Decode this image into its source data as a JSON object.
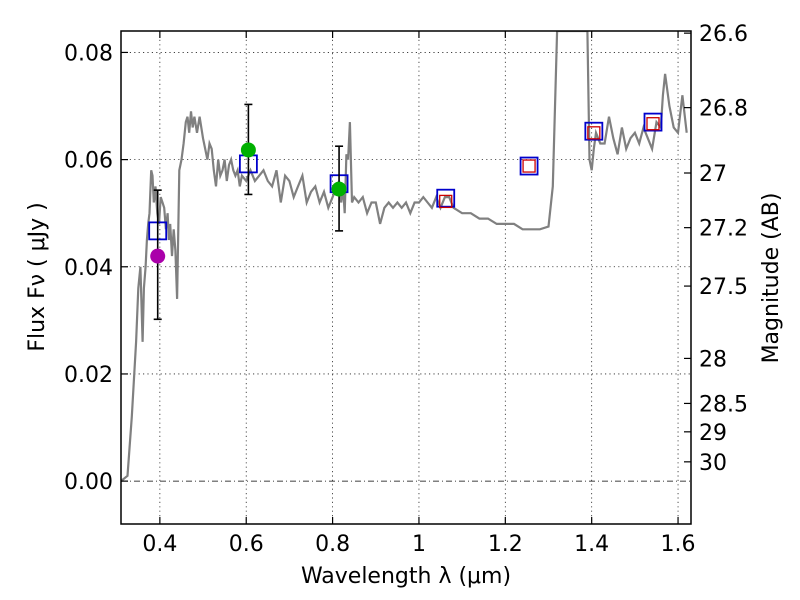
{
  "chart_data": {
    "type": "line",
    "title": "",
    "xlabel": "Wavelength  λ (μm)",
    "ylabel": "Flux  Fν  ( μJy )",
    "y2label": "Magnitude (AB)",
    "xlim": [
      0.31,
      1.63
    ],
    "ylim": [
      -0.008,
      0.084
    ],
    "grid": true,
    "x_ticks": [
      0.4,
      0.6,
      0.8,
      1.0,
      1.2,
      1.4,
      1.6
    ],
    "x_tick_labels": [
      "0.4",
      "0.6",
      "0.8",
      "1",
      "1.2",
      "1.4",
      "1.6"
    ],
    "y_ticks": [
      0.0,
      0.02,
      0.04,
      0.06,
      0.08
    ],
    "y_tick_labels": [
      "0.00",
      "0.02",
      "0.04",
      "0.06",
      "0.08"
    ],
    "y2_ticks": [
      {
        "flux": 0.0836,
        "label": "26.6"
      },
      {
        "flux": 0.0697,
        "label": "26.8"
      },
      {
        "flux": 0.0575,
        "label": "27"
      },
      {
        "flux": 0.0473,
        "label": "27.2"
      },
      {
        "flux": 0.0364,
        "label": "27.5"
      },
      {
        "flux": 0.0229,
        "label": "28"
      },
      {
        "flux": 0.0145,
        "label": "28.5"
      },
      {
        "flux": 0.0092,
        "label": "29"
      },
      {
        "flux": 0.0036,
        "label": "30"
      }
    ],
    "zero_line": 0.0,
    "colors": {
      "spectrum": "#808080",
      "model_box": "#0000cc",
      "red_box": "#cc0000",
      "green": "#00b000",
      "magenta": "#aa00aa",
      "errorbar": "#000000"
    },
    "series": [
      {
        "name": "model spectrum",
        "kind": "line",
        "x": [
          0.31,
          0.325,
          0.335,
          0.345,
          0.35,
          0.355,
          0.36,
          0.363,
          0.367,
          0.37,
          0.373,
          0.376,
          0.38,
          0.383,
          0.386,
          0.39,
          0.394,
          0.398,
          0.402,
          0.406,
          0.41,
          0.414,
          0.418,
          0.421,
          0.424,
          0.428,
          0.432,
          0.436,
          0.44,
          0.445,
          0.45,
          0.455,
          0.46,
          0.464,
          0.468,
          0.472,
          0.476,
          0.48,
          0.486,
          0.492,
          0.5,
          0.505,
          0.51,
          0.515,
          0.52,
          0.525,
          0.53,
          0.535,
          0.54,
          0.545,
          0.55,
          0.555,
          0.56,
          0.565,
          0.57,
          0.575,
          0.58,
          0.585,
          0.59,
          0.6,
          0.61,
          0.62,
          0.63,
          0.64,
          0.65,
          0.66,
          0.67,
          0.68,
          0.69,
          0.7,
          0.71,
          0.72,
          0.73,
          0.74,
          0.75,
          0.76,
          0.77,
          0.78,
          0.79,
          0.8,
          0.81,
          0.815,
          0.82,
          0.824,
          0.828,
          0.832,
          0.836,
          0.84,
          0.845,
          0.85,
          0.86,
          0.87,
          0.88,
          0.89,
          0.9,
          0.91,
          0.92,
          0.93,
          0.94,
          0.95,
          0.96,
          0.97,
          0.98,
          0.99,
          1.0,
          1.01,
          1.02,
          1.03,
          1.04,
          1.05,
          1.06,
          1.07,
          1.08,
          1.1,
          1.12,
          1.14,
          1.16,
          1.18,
          1.2,
          1.22,
          1.24,
          1.26,
          1.28,
          1.3,
          1.31,
          1.32,
          1.325,
          1.33,
          1.335,
          1.34,
          1.343,
          1.346,
          1.35,
          1.36,
          1.37,
          1.38,
          1.39,
          1.395,
          1.4,
          1.405,
          1.41,
          1.42,
          1.43,
          1.44,
          1.45,
          1.46,
          1.47,
          1.48,
          1.49,
          1.5,
          1.51,
          1.52,
          1.53,
          1.54,
          1.55,
          1.56,
          1.565,
          1.57,
          1.58,
          1.59,
          1.6,
          1.61,
          1.62
        ],
        "y": [
          0.0,
          0.001,
          0.012,
          0.026,
          0.036,
          0.04,
          0.026,
          0.036,
          0.04,
          0.045,
          0.048,
          0.05,
          0.058,
          0.057,
          0.052,
          0.055,
          0.05,
          0.048,
          0.053,
          0.052,
          0.051,
          0.047,
          0.05,
          0.045,
          0.048,
          0.042,
          0.047,
          0.043,
          0.034,
          0.058,
          0.06,
          0.063,
          0.067,
          0.068,
          0.065,
          0.069,
          0.066,
          0.068,
          0.065,
          0.068,
          0.064,
          0.062,
          0.06,
          0.063,
          0.062,
          0.058,
          0.055,
          0.06,
          0.057,
          0.058,
          0.06,
          0.056,
          0.059,
          0.06,
          0.058,
          0.057,
          0.058,
          0.055,
          0.057,
          0.056,
          0.058,
          0.056,
          0.057,
          0.058,
          0.056,
          0.055,
          0.058,
          0.052,
          0.057,
          0.056,
          0.053,
          0.055,
          0.057,
          0.052,
          0.054,
          0.055,
          0.052,
          0.054,
          0.051,
          0.053,
          0.055,
          0.056,
          0.052,
          0.055,
          0.05,
          0.061,
          0.06,
          0.067,
          0.052,
          0.053,
          0.052,
          0.053,
          0.05,
          0.052,
          0.052,
          0.048,
          0.051,
          0.052,
          0.051,
          0.052,
          0.051,
          0.052,
          0.05,
          0.052,
          0.052,
          0.053,
          0.052,
          0.051,
          0.053,
          0.051,
          0.053,
          0.053,
          0.051,
          0.05,
          0.05,
          0.049,
          0.049,
          0.048,
          0.048,
          0.048,
          0.047,
          0.047,
          0.047,
          0.0475,
          0.055,
          0.084,
          0.084,
          0.084,
          0.084,
          0.084,
          0.084,
          0.084,
          0.084,
          0.084,
          0.084,
          0.084,
          0.084,
          0.06,
          0.058,
          0.062,
          0.065,
          0.063,
          0.063,
          0.068,
          0.064,
          0.061,
          0.066,
          0.062,
          0.064,
          0.065,
          0.063,
          0.066,
          0.064,
          0.062,
          0.067,
          0.066,
          0.072,
          0.076,
          0.07,
          0.066,
          0.065,
          0.072,
          0.065
        ],
        "description_values": "grey SED curve rising sharply near 0.43 um, breaking near 0.48 um, flat ~0.05-0.055 to 1.3 um, spike above plot at ~1.33-1.38 um, then ~0.065"
      },
      {
        "name": "model photometry (blue squares)",
        "kind": "marker",
        "x": [
          0.395,
          0.605,
          0.815,
          1.062,
          1.255,
          1.405,
          1.542
        ],
        "y": [
          0.0467,
          0.0592,
          0.0555,
          0.0528,
          0.0588,
          0.0653,
          0.067
        ]
      },
      {
        "name": "red squares",
        "kind": "marker",
        "x": [
          1.062,
          1.255,
          1.405,
          1.542
        ],
        "y": [
          0.0522,
          0.0588,
          0.065,
          0.0667
        ]
      },
      {
        "name": "observed (green)",
        "kind": "marker",
        "x": [
          0.605,
          0.815
        ],
        "y": [
          0.0618,
          0.0545
        ],
        "yerr_low": [
          0.0083,
          0.0078
        ],
        "yerr_high": [
          0.0085,
          0.008
        ]
      },
      {
        "name": "observed (magenta)",
        "kind": "marker",
        "x": [
          0.395
        ],
        "y": [
          0.042
        ],
        "yerr_low": [
          0.0118
        ],
        "yerr_high": [
          0.0123
        ]
      }
    ]
  }
}
